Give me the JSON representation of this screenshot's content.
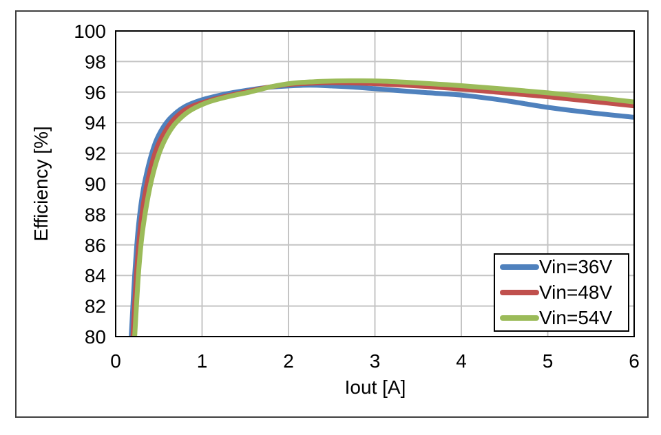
{
  "chart_data": {
    "type": "line",
    "title": "",
    "xlabel": "Iout [A]",
    "ylabel": "Efficiency [%]",
    "xlim": [
      0,
      6
    ],
    "ylim": [
      80,
      100
    ],
    "x_ticks": [
      0,
      1,
      2,
      3,
      4,
      5,
      6
    ],
    "y_ticks": [
      80,
      82,
      84,
      86,
      88,
      90,
      92,
      94,
      96,
      98,
      100
    ],
    "grid": true,
    "legend_position": "bottom-right",
    "colors": {
      "gridline": "#C4C4C4",
      "plot_border": "#000000",
      "figure_border": "#3F3F3F",
      "background": "#FFFFFF"
    },
    "series": [
      {
        "name": "Vin=36V",
        "color": "#4F81BD",
        "points": [
          [
            0.18,
            80
          ],
          [
            0.22,
            84
          ],
          [
            0.26,
            87
          ],
          [
            0.31,
            89.3
          ],
          [
            0.38,
            91.2
          ],
          [
            0.46,
            92.7
          ],
          [
            0.55,
            93.7
          ],
          [
            0.65,
            94.4
          ],
          [
            0.8,
            95.05
          ],
          [
            1.0,
            95.5
          ],
          [
            1.25,
            95.85
          ],
          [
            1.5,
            96.1
          ],
          [
            1.75,
            96.3
          ],
          [
            2.0,
            96.4
          ],
          [
            2.25,
            96.45
          ],
          [
            2.5,
            96.4
          ],
          [
            2.75,
            96.33
          ],
          [
            3.0,
            96.22
          ],
          [
            3.5,
            96.0
          ],
          [
            4.0,
            95.8
          ],
          [
            4.5,
            95.45
          ],
          [
            5.0,
            95.0
          ],
          [
            5.5,
            94.65
          ],
          [
            6.0,
            94.35
          ]
        ]
      },
      {
        "name": "Vin=48V",
        "color": "#C0504D",
        "points": [
          [
            0.2,
            80
          ],
          [
            0.24,
            84
          ],
          [
            0.28,
            86.8
          ],
          [
            0.33,
            89
          ],
          [
            0.4,
            90.9
          ],
          [
            0.48,
            92.4
          ],
          [
            0.57,
            93.4
          ],
          [
            0.67,
            94.2
          ],
          [
            0.82,
            94.9
          ],
          [
            1.0,
            95.3
          ],
          [
            1.25,
            95.7
          ],
          [
            1.5,
            96.0
          ],
          [
            1.75,
            96.3
          ],
          [
            2.0,
            96.5
          ],
          [
            2.25,
            96.58
          ],
          [
            2.5,
            96.62
          ],
          [
            2.75,
            96.6
          ],
          [
            3.0,
            96.55
          ],
          [
            3.5,
            96.4
          ],
          [
            4.0,
            96.2
          ],
          [
            4.5,
            95.95
          ],
          [
            5.0,
            95.7
          ],
          [
            5.5,
            95.4
          ],
          [
            6.0,
            95.1
          ]
        ]
      },
      {
        "name": "Vin=54V",
        "color": "#9BBB59",
        "points": [
          [
            0.22,
            80
          ],
          [
            0.26,
            83.8
          ],
          [
            0.3,
            86.4
          ],
          [
            0.36,
            88.7
          ],
          [
            0.43,
            90.6
          ],
          [
            0.51,
            92.1
          ],
          [
            0.6,
            93.2
          ],
          [
            0.7,
            94.0
          ],
          [
            0.85,
            94.75
          ],
          [
            1.05,
            95.3
          ],
          [
            1.3,
            95.7
          ],
          [
            1.55,
            96.0
          ],
          [
            1.8,
            96.35
          ],
          [
            2.05,
            96.58
          ],
          [
            2.3,
            96.68
          ],
          [
            2.55,
            96.73
          ],
          [
            2.8,
            96.74
          ],
          [
            3.05,
            96.72
          ],
          [
            3.5,
            96.6
          ],
          [
            4.0,
            96.42
          ],
          [
            4.5,
            96.2
          ],
          [
            5.0,
            95.95
          ],
          [
            5.5,
            95.67
          ],
          [
            6.0,
            95.35
          ]
        ]
      }
    ]
  }
}
